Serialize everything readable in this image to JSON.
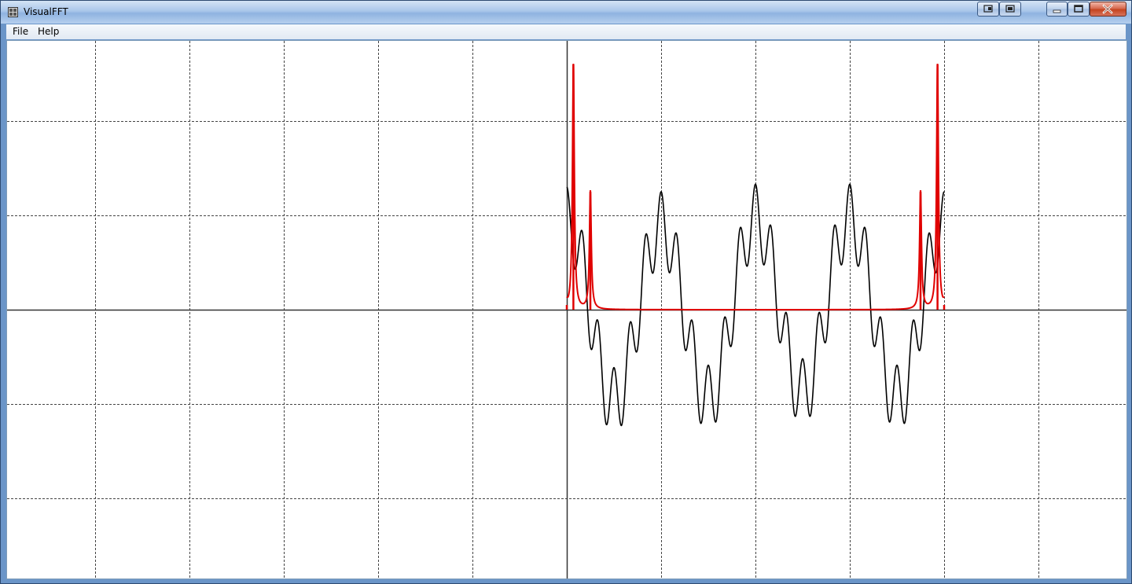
{
  "window": {
    "title": "VisualFFT",
    "icon": "app-grid-icon",
    "controls": [
      "extra-button-1-icon",
      "extra-button-2-icon",
      "minimize-icon",
      "maximize-icon",
      "close-icon"
    ]
  },
  "menu": {
    "items": [
      {
        "label": "File"
      },
      {
        "label": "Help"
      }
    ]
  },
  "plot": {
    "signal_color": "#000000",
    "spectrum_color": "#e00000",
    "grid_color": "#444444"
  },
  "chart_data": {
    "type": "line",
    "title": "",
    "xlabel": "",
    "ylabel": "",
    "grid": true,
    "xlim": [
      -6,
      6
    ],
    "ylim": [
      -3,
      3
    ],
    "series": [
      {
        "kind": "signal",
        "x_range": [
          0,
          4
        ],
        "components": [
          {
            "freq": 1,
            "amp": 1.8
          },
          {
            "freq": 6,
            "amp": 0.7
          },
          {
            "freq": 0.3,
            "amp": 0.1,
            "phase_deg": 90
          }
        ]
      },
      {
        "kind": "spectrum",
        "x": [
          0,
          0.07,
          0.25,
          3.75,
          3.93,
          4
        ],
        "peak_heights": [
          0.05,
          2.6,
          1.25,
          1.25,
          2.6,
          0.05
        ]
      }
    ]
  }
}
